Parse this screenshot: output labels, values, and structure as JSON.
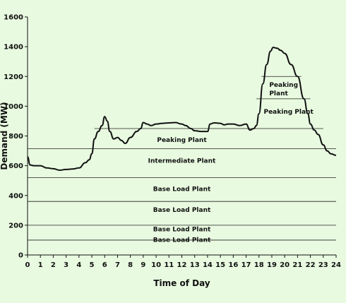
{
  "chart_data": {
    "type": "line",
    "title": "",
    "xlabel": "Time of Day",
    "ylabel": "Demand (MW)",
    "xlim": [
      0,
      24
    ],
    "ylim": [
      0,
      1600
    ],
    "xticks": [
      0,
      1,
      2,
      3,
      4,
      5,
      6,
      7,
      8,
      9,
      10,
      11,
      12,
      13,
      14,
      15,
      16,
      17,
      18,
      19,
      20,
      21,
      22,
      23,
      24
    ],
    "yticks": [
      0,
      200,
      400,
      600,
      800,
      1000,
      1200,
      1400,
      1600
    ],
    "grid": false,
    "legend": "none",
    "series": [
      {
        "color": "#111111",
        "x": [
          0,
          0.2,
          0.5,
          1,
          1.5,
          2,
          2.5,
          3,
          3.5,
          4,
          4.5,
          4.8,
          5,
          5.2,
          5.5,
          5.8,
          6,
          6.2,
          6.4,
          6.7,
          7,
          7.3,
          7.6,
          8,
          8.5,
          8.8,
          9,
          9.3,
          9.6,
          10,
          10.5,
          11,
          11.5,
          12,
          12.3,
          12.7,
          13,
          13.5,
          14,
          14.2,
          14.5,
          15,
          15.3,
          15.6,
          16,
          16.5,
          17,
          17.3,
          17.6,
          17.8,
          18,
          18.3,
          18.6,
          18.9,
          19.1,
          19.4,
          19.7,
          20,
          20.5,
          21,
          21.5,
          21.8,
          22,
          22.3,
          22.6,
          23,
          23.3,
          23.6,
          24
        ],
        "y": [
          660,
          605,
          600,
          600,
          585,
          580,
          570,
          575,
          578,
          585,
          620,
          640,
          680,
          780,
          830,
          870,
          930,
          900,
          830,
          780,
          790,
          770,
          750,
          790,
          830,
          850,
          890,
          880,
          870,
          880,
          885,
          888,
          890,
          880,
          870,
          850,
          835,
          830,
          830,
          880,
          888,
          885,
          875,
          880,
          880,
          870,
          880,
          840,
          850,
          870,
          950,
          1150,
          1280,
          1370,
          1395,
          1390,
          1375,
          1355,
          1280,
          1200,
          1050,
          950,
          880,
          840,
          810,
          740,
          700,
          680,
          670
        ]
      }
    ],
    "bands": [
      {
        "label": "Base Load Plant",
        "from": 0,
        "to": 100
      },
      {
        "label": "Base Load Plant",
        "from": 100,
        "to": 200
      },
      {
        "label": "Base Load Plant",
        "from": 200,
        "to": 360
      },
      {
        "label": "Base Load Plant",
        "from": 360,
        "to": 520
      },
      {
        "label": "Intermediate Plant",
        "from": 520,
        "to": 715
      },
      {
        "label": "Peaking Plant",
        "from": 715,
        "to": 850
      },
      {
        "label": "Peaking Plant",
        "from": 850,
        "to": 1050
      },
      {
        "label": "Peaking Plant",
        "from": 1050,
        "to": 1200
      }
    ]
  }
}
